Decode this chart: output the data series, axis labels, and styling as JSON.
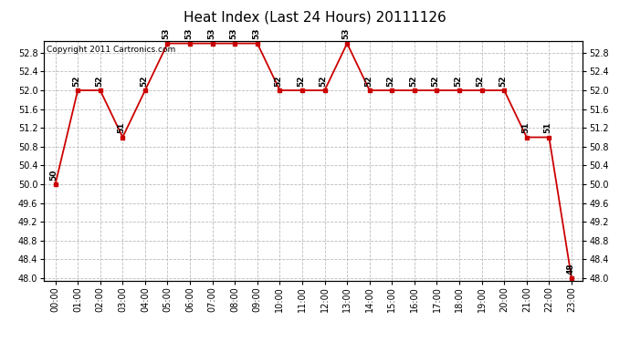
{
  "title": "Heat Index (Last 24 Hours) 20111126",
  "copyright": "Copyright 2011 Cartronics.com",
  "hours": [
    "00:00",
    "01:00",
    "02:00",
    "03:00",
    "04:00",
    "05:00",
    "06:00",
    "07:00",
    "08:00",
    "09:00",
    "10:00",
    "11:00",
    "12:00",
    "13:00",
    "14:00",
    "15:00",
    "16:00",
    "17:00",
    "18:00",
    "19:00",
    "20:00",
    "21:00",
    "22:00",
    "23:00"
  ],
  "values": [
    50,
    52,
    52,
    51,
    52,
    53,
    53,
    53,
    53,
    53,
    52,
    52,
    52,
    53,
    52,
    52,
    52,
    52,
    52,
    52,
    52,
    51,
    51,
    48
  ],
  "ylim_min": 48.0,
  "ylim_max": 53.0,
  "ystep": 0.4,
  "line_color": "#cc0000",
  "marker_color": "#cc0000",
  "bg_color": "#ffffff",
  "plot_bg_color": "#ffffff",
  "grid_color": "#bbbbbb",
  "title_fontsize": 11,
  "label_fontsize": 7,
  "annotation_fontsize": 6.5,
  "copyright_fontsize": 6.5
}
